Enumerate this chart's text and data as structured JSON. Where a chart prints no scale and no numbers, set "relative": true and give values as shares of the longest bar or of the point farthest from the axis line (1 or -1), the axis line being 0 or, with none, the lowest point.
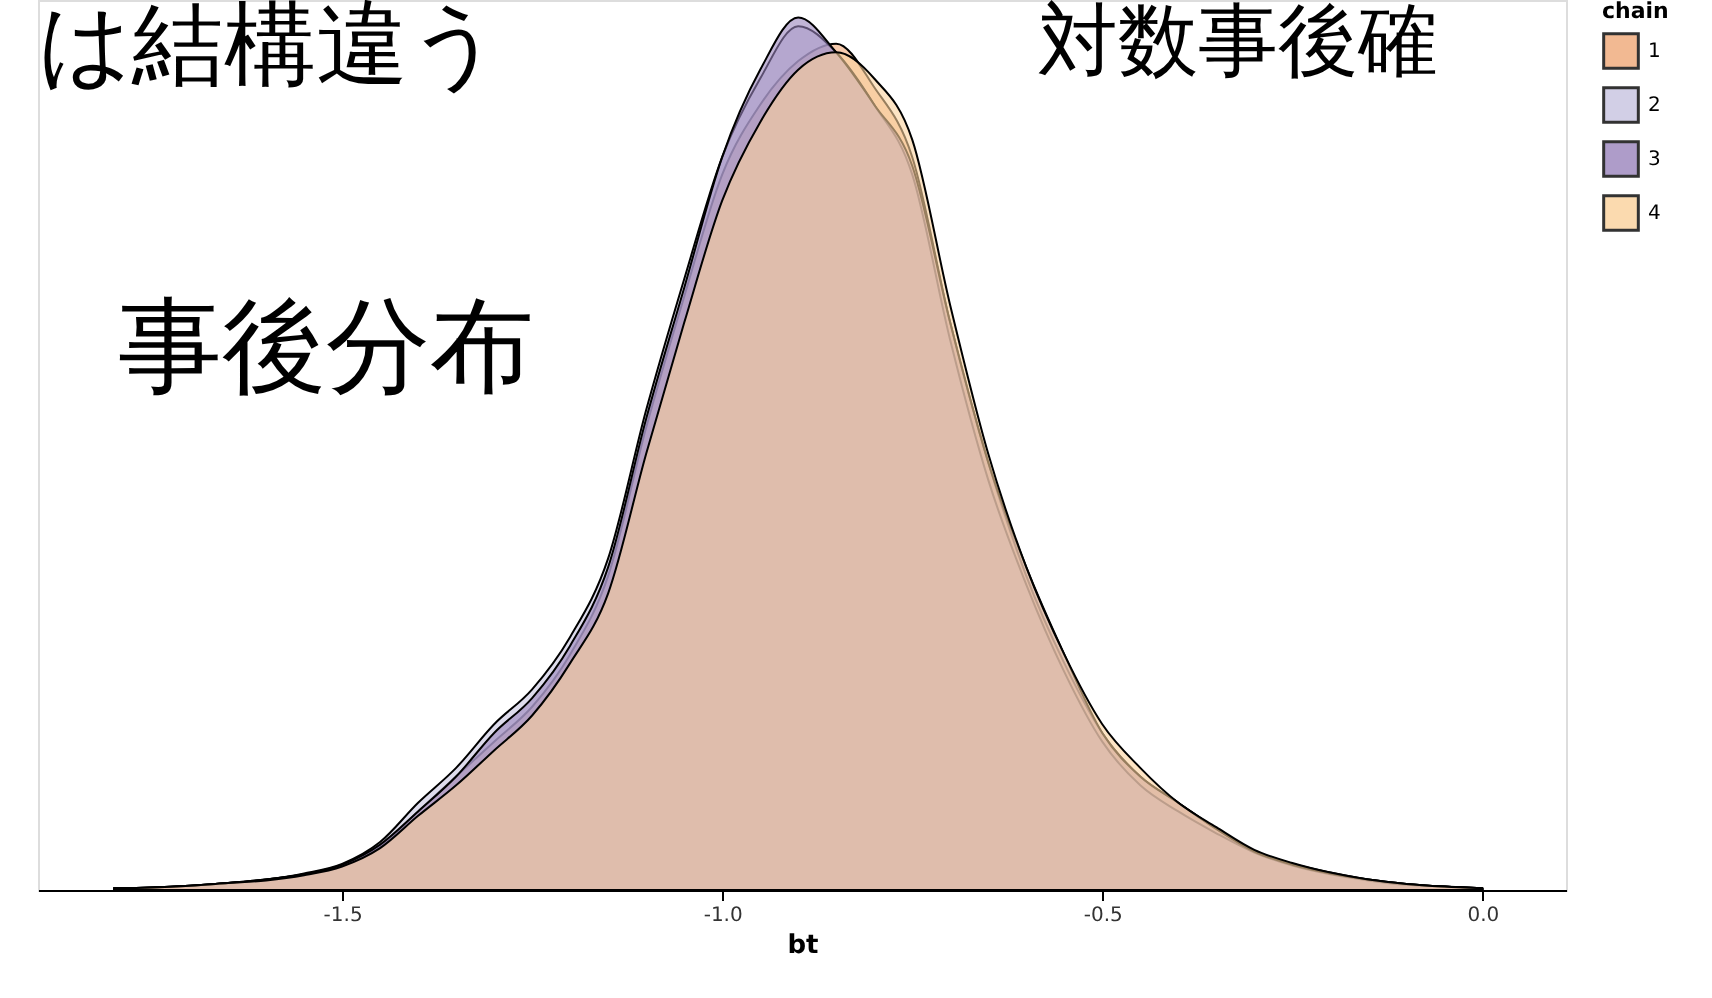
{
  "chart_data": {
    "type": "area",
    "relative": true,
    "xlabel": "bt",
    "legend_title": "chain",
    "legend": "right",
    "grid": false,
    "tick_labels": "x",
    "xlim": [
      -1.9,
      0.11
    ],
    "xticks": [
      -1.5,
      {
        "value": -1.0,
        "label": "-1.0"
      },
      -0.5,
      {
        "value": 0.0,
        "label": "0.0"
      }
    ],
    "x": [
      -1.8,
      -1.75,
      -1.7,
      -1.65,
      -1.6,
      -1.55,
      -1.5,
      -1.45,
      -1.4,
      -1.35,
      -1.3,
      -1.25,
      -1.2,
      -1.15,
      -1.1,
      -1.05,
      -1.0,
      -0.95,
      -0.9,
      -0.85,
      -0.8,
      -0.75,
      -0.7,
      -0.65,
      -0.6,
      -0.55,
      -0.5,
      -0.45,
      -0.4,
      -0.35,
      -0.3,
      -0.25,
      -0.2,
      -0.15,
      -0.1,
      -0.05,
      0.0
    ],
    "series": [
      {
        "name": "1",
        "color": "#f0a878",
        "values": [
          0.002,
          0.003,
          0.005,
          0.008,
          0.012,
          0.018,
          0.028,
          0.05,
          0.09,
          0.13,
          0.17,
          0.21,
          0.27,
          0.36,
          0.53,
          0.68,
          0.82,
          0.9,
          0.95,
          0.97,
          0.92,
          0.84,
          0.65,
          0.49,
          0.36,
          0.26,
          0.18,
          0.13,
          0.1,
          0.07,
          0.045,
          0.03,
          0.02,
          0.012,
          0.007,
          0.004,
          0.002
        ]
      },
      {
        "name": "2",
        "color": "#c8c4e0",
        "values": [
          0.002,
          0.003,
          0.005,
          0.008,
          0.012,
          0.019,
          0.03,
          0.055,
          0.1,
          0.14,
          0.19,
          0.23,
          0.29,
          0.38,
          0.55,
          0.7,
          0.84,
          0.93,
          0.99,
          0.96,
          0.9,
          0.82,
          0.63,
          0.47,
          0.35,
          0.25,
          0.17,
          0.12,
          0.09,
          0.065,
          0.043,
          0.028,
          0.018,
          0.011,
          0.006,
          0.004,
          0.002
        ]
      },
      {
        "name": "3",
        "color": "#9a84bc",
        "values": [
          0.002,
          0.003,
          0.005,
          0.008,
          0.012,
          0.018,
          0.029,
          0.052,
          0.09,
          0.13,
          0.18,
          0.22,
          0.28,
          0.37,
          0.54,
          0.69,
          0.84,
          0.94,
          1.0,
          0.96,
          0.9,
          0.83,
          0.65,
          0.49,
          0.37,
          0.27,
          0.18,
          0.13,
          0.1,
          0.07,
          0.044,
          0.029,
          0.019,
          0.012,
          0.007,
          0.004,
          0.002
        ]
      },
      {
        "name": "4",
        "color": "#fbd29c",
        "values": [
          0.002,
          0.003,
          0.005,
          0.008,
          0.011,
          0.017,
          0.027,
          0.048,
          0.085,
          0.12,
          0.16,
          0.2,
          0.26,
          0.34,
          0.5,
          0.65,
          0.79,
          0.88,
          0.94,
          0.96,
          0.93,
          0.86,
          0.67,
          0.5,
          0.37,
          0.27,
          0.19,
          0.14,
          0.1,
          0.072,
          0.046,
          0.031,
          0.02,
          0.012,
          0.007,
          0.004,
          0.002
        ]
      }
    ],
    "annotations": [
      "は結構違う",
      "対数事後確",
      "事後分布"
    ]
  }
}
